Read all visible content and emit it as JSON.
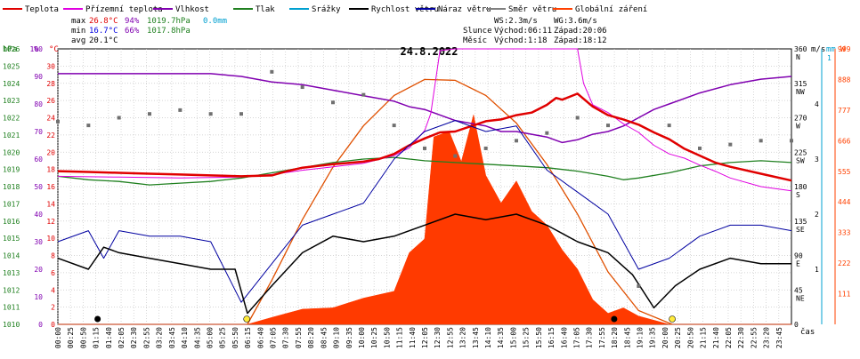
{
  "chart_data": {
    "type": "line",
    "title": "24.8.2022",
    "legend": [
      {
        "name": "Teplota",
        "color": "#e00000"
      },
      {
        "name": "Přízemní teplota",
        "color": "#e000e0"
      },
      {
        "name": "Vlhkost",
        "color": "#8000b0"
      },
      {
        "name": "Tlak",
        "color": "#208020"
      },
      {
        "name": "Srážky",
        "color": "#00a0d0"
      },
      {
        "name": "Rychlost větru",
        "color": "#000000"
      },
      {
        "name": "Náraz větru",
        "color": "#0000a0"
      },
      {
        "name": "Směr větru",
        "color": "#808080"
      },
      {
        "name": "Globální záření",
        "color": "#ff4000"
      }
    ],
    "stats": {
      "max": {
        "label": "max",
        "temp": "26.8°C",
        "hum": "94%",
        "press": "1019.7hPa",
        "rain": "0.0mm"
      },
      "min": {
        "label": "min",
        "temp": "16.7°C",
        "hum": "66%",
        "press": "1017.8hPa"
      },
      "avg": {
        "label": "avg",
        "temp": "20.1°C"
      }
    },
    "info": {
      "ws": "WS:2.3m/s",
      "wg": "WG:3.6m/s",
      "sun_label": "Slunce",
      "sun_rise": "Východ:06:11",
      "sun_set": "Západ:20:06",
      "moon_label": "Měsíc",
      "moon_rise": "Východ:1:18",
      "moon_set": "Západ:18:12"
    },
    "axes": {
      "hpa_unit": "hPa",
      "pct_unit": "%",
      "c_unit": "°C",
      "ms_unit": "m/s",
      "mm_unit": "mm",
      "w_unit": "W",
      "x_unit": "čas",
      "hpa_ticks": [
        "1026",
        "1025",
        "1024",
        "1023",
        "1022",
        "1021",
        "1020",
        "1019",
        "1018",
        "1017",
        "1016",
        "1015",
        "1014",
        "1013",
        "1012",
        "1011",
        "1010"
      ],
      "pct_ticks": [
        "100",
        "90",
        "80",
        "70",
        "60",
        "50",
        "40",
        "30",
        "20",
        "10",
        "0"
      ],
      "c_ticks": [
        "30",
        "28",
        "26",
        "24",
        "22",
        "20",
        "18",
        "16",
        "14",
        "12",
        "10",
        "8",
        "6",
        "4",
        "2",
        "0"
      ],
      "dir_ticks": [
        [
          "360",
          "N"
        ],
        [
          "315",
          "NW"
        ],
        [
          "270",
          "W"
        ],
        [
          "225",
          "SW"
        ],
        [
          "180",
          "S"
        ],
        [
          "135",
          "SE"
        ],
        [
          "90",
          "E"
        ],
        [
          "45",
          "NE"
        ],
        [
          "0",
          ""
        ]
      ],
      "ms_ticks": [
        "4",
        "3",
        "2",
        "1"
      ],
      "mm_ticks": [
        "1"
      ],
      "w_ticks": [
        "999",
        "888",
        "777",
        "666",
        "555",
        "444",
        "333",
        "222",
        "111"
      ],
      "time_ticks": [
        "00:00",
        "00:25",
        "00:50",
        "01:15",
        "01:40",
        "02:05",
        "02:30",
        "02:55",
        "03:20",
        "03:45",
        "04:10",
        "04:35",
        "05:00",
        "05:25",
        "05:50",
        "06:15",
        "06:40",
        "07:05",
        "07:30",
        "07:55",
        "08:20",
        "08:45",
        "09:10",
        "09:35",
        "10:00",
        "10:25",
        "10:50",
        "11:15",
        "11:40",
        "12:05",
        "12:30",
        "12:55",
        "13:20",
        "13:45",
        "14:10",
        "14:35",
        "15:00",
        "15:25",
        "15:50",
        "16:15",
        "16:40",
        "17:05",
        "17:30",
        "17:55",
        "18:20",
        "18:45",
        "19:10",
        "19:35",
        "20:00",
        "20:25",
        "20:50",
        "21:15",
        "21:40",
        "22:05",
        "22:30",
        "22:55",
        "23:20",
        "23:45"
      ]
    },
    "ranges": {
      "temp_c": [
        0,
        32
      ],
      "humidity_pct": [
        0,
        100
      ],
      "pressure_hpa": [
        1010,
        1026
      ],
      "wind_ms": [
        0,
        5
      ],
      "radiation_w": [
        0,
        999
      ],
      "direction_deg": [
        0,
        360
      ],
      "time_h": [
        0,
        24
      ]
    },
    "series": {
      "temperature": [
        [
          0,
          17.8
        ],
        [
          1,
          17.7
        ],
        [
          2,
          17.6
        ],
        [
          3,
          17.5
        ],
        [
          4,
          17.4
        ],
        [
          5,
          17.3
        ],
        [
          6,
          17.2
        ],
        [
          7,
          17.3
        ],
        [
          7.5,
          17.8
        ],
        [
          8,
          18.2
        ],
        [
          9,
          18.6
        ],
        [
          10,
          18.9
        ],
        [
          10.5,
          19.2
        ],
        [
          11,
          19.8
        ],
        [
          11.5,
          20.8
        ],
        [
          12,
          21.6
        ],
        [
          12.5,
          22.3
        ],
        [
          13,
          22.4
        ],
        [
          13.5,
          23.0
        ],
        [
          14,
          23.6
        ],
        [
          14.5,
          23.8
        ],
        [
          15,
          24.3
        ],
        [
          15.5,
          24.6
        ],
        [
          16,
          25.5
        ],
        [
          16.3,
          26.3
        ],
        [
          16.5,
          26.1
        ],
        [
          17,
          26.8
        ],
        [
          17.5,
          25.3
        ],
        [
          18,
          24.3
        ],
        [
          18.5,
          23.8
        ],
        [
          19,
          23.2
        ],
        [
          19.5,
          22.3
        ],
        [
          20,
          21.5
        ],
        [
          20.5,
          20.4
        ],
        [
          21,
          19.6
        ],
        [
          21.5,
          18.8
        ],
        [
          22,
          18.3
        ],
        [
          23,
          17.5
        ],
        [
          24,
          16.7
        ]
      ],
      "ground_temperature": [
        [
          0,
          17.2
        ],
        [
          2,
          17.1
        ],
        [
          4,
          17.0
        ],
        [
          6,
          17.1
        ],
        [
          7,
          17.4
        ],
        [
          8,
          17.9
        ],
        [
          9,
          18.3
        ],
        [
          10,
          18.7
        ],
        [
          11,
          19.6
        ],
        [
          11.5,
          20.5
        ],
        [
          12,
          22.5
        ],
        [
          12.2,
          24.5
        ],
        [
          12.5,
          31.8
        ],
        [
          13,
          32.0
        ],
        [
          14,
          32.0
        ],
        [
          15,
          32.0
        ],
        [
          16,
          32.0
        ],
        [
          17,
          32.0
        ],
        [
          17.2,
          28.0
        ],
        [
          17.5,
          25.5
        ],
        [
          18,
          24.6
        ],
        [
          18.5,
          23.3
        ],
        [
          19,
          22.3
        ],
        [
          19.5,
          20.8
        ],
        [
          20,
          19.8
        ],
        [
          20.5,
          19.3
        ],
        [
          21,
          18.5
        ],
        [
          21.5,
          17.8
        ],
        [
          22,
          17.0
        ],
        [
          23,
          16.0
        ],
        [
          24,
          15.5
        ]
      ],
      "humidity": [
        [
          0,
          91
        ],
        [
          4,
          91
        ],
        [
          5,
          91
        ],
        [
          6,
          90
        ],
        [
          7,
          88
        ],
        [
          8,
          87
        ],
        [
          9,
          85
        ],
        [
          10,
          83
        ],
        [
          11,
          81
        ],
        [
          11.5,
          79
        ],
        [
          12,
          78
        ],
        [
          12.5,
          76
        ],
        [
          13,
          74
        ],
        [
          13.5,
          73
        ],
        [
          14,
          72
        ],
        [
          14.5,
          70
        ],
        [
          15,
          70
        ],
        [
          15.5,
          69
        ],
        [
          16,
          68
        ],
        [
          16.5,
          66
        ],
        [
          17,
          67
        ],
        [
          17.5,
          69
        ],
        [
          18,
          70
        ],
        [
          18.5,
          72
        ],
        [
          19,
          75
        ],
        [
          19.5,
          78
        ],
        [
          20,
          80
        ],
        [
          21,
          84
        ],
        [
          22,
          87
        ],
        [
          23,
          89
        ],
        [
          24,
          90
        ]
      ],
      "pressure": [
        [
          0,
          1018.6
        ],
        [
          1,
          1018.4
        ],
        [
          2,
          1018.3
        ],
        [
          3,
          1018.1
        ],
        [
          4,
          1018.2
        ],
        [
          5,
          1018.3
        ],
        [
          6,
          1018.5
        ],
        [
          7,
          1018.8
        ],
        [
          8,
          1019.1
        ],
        [
          9,
          1019.4
        ],
        [
          10,
          1019.6
        ],
        [
          11,
          1019.7
        ],
        [
          12,
          1019.5
        ],
        [
          13,
          1019.4
        ],
        [
          14,
          1019.3
        ],
        [
          15,
          1019.2
        ],
        [
          16,
          1019.1
        ],
        [
          17,
          1018.9
        ],
        [
          18,
          1018.6
        ],
        [
          18.5,
          1018.4
        ],
        [
          19,
          1018.5
        ],
        [
          20,
          1018.8
        ],
        [
          21,
          1019.2
        ],
        [
          22,
          1019.4
        ],
        [
          23,
          1019.5
        ],
        [
          24,
          1019.4
        ]
      ],
      "radiation": [
        [
          0,
          0
        ],
        [
          6.2,
          0
        ],
        [
          7,
          25
        ],
        [
          8,
          55
        ],
        [
          9,
          60
        ],
        [
          10,
          95
        ],
        [
          11,
          120
        ],
        [
          11.5,
          260
        ],
        [
          12,
          310
        ],
        [
          12.3,
          680
        ],
        [
          12.8,
          700
        ],
        [
          13.2,
          590
        ],
        [
          13.6,
          760
        ],
        [
          14,
          540
        ],
        [
          14.5,
          440
        ],
        [
          15,
          520
        ],
        [
          15.5,
          410
        ],
        [
          16,
          360
        ],
        [
          16.5,
          270
        ],
        [
          17,
          200
        ],
        [
          17.5,
          90
        ],
        [
          18,
          40
        ],
        [
          18.5,
          60
        ],
        [
          19,
          30
        ],
        [
          20,
          0
        ],
        [
          24,
          0
        ]
      ],
      "radiation_theoretical": [
        [
          6.2,
          0
        ],
        [
          7,
          160
        ],
        [
          8,
          380
        ],
        [
          9,
          570
        ],
        [
          10,
          720
        ],
        [
          11,
          830
        ],
        [
          12,
          888
        ],
        [
          13,
          885
        ],
        [
          14,
          830
        ],
        [
          15,
          730
        ],
        [
          16,
          580
        ],
        [
          17,
          400
        ],
        [
          18,
          190
        ],
        [
          19,
          50
        ],
        [
          20.1,
          0
        ]
      ],
      "wind_speed": [
        [
          0,
          1.2
        ],
        [
          1,
          1.0
        ],
        [
          1.5,
          1.4
        ],
        [
          2,
          1.3
        ],
        [
          3,
          1.2
        ],
        [
          4,
          1.1
        ],
        [
          5,
          1.0
        ],
        [
          5.8,
          1.0
        ],
        [
          6.2,
          0.2
        ],
        [
          7,
          0.7
        ],
        [
          8,
          1.3
        ],
        [
          9,
          1.6
        ],
        [
          10,
          1.5
        ],
        [
          11,
          1.6
        ],
        [
          12,
          1.8
        ],
        [
          13,
          2.0
        ],
        [
          14,
          1.9
        ],
        [
          15,
          2.0
        ],
        [
          16,
          1.8
        ],
        [
          17,
          1.5
        ],
        [
          18,
          1.3
        ],
        [
          18.8,
          0.9
        ],
        [
          19.5,
          0.3
        ],
        [
          20.2,
          0.7
        ],
        [
          21,
          1.0
        ],
        [
          22,
          1.2
        ],
        [
          23,
          1.1
        ],
        [
          24,
          1.1
        ]
      ],
      "wind_gust": [
        [
          0,
          1.5
        ],
        [
          1,
          1.7
        ],
        [
          1.5,
          1.2
        ],
        [
          2,
          1.7
        ],
        [
          3,
          1.6
        ],
        [
          4,
          1.6
        ],
        [
          5,
          1.5
        ],
        [
          6,
          0.4
        ],
        [
          7,
          1.1
        ],
        [
          8,
          1.8
        ],
        [
          9,
          2.0
        ],
        [
          10,
          2.2
        ],
        [
          11,
          3.0
        ],
        [
          12,
          3.5
        ],
        [
          13,
          3.7
        ],
        [
          14,
          3.5
        ],
        [
          15,
          3.6
        ],
        [
          16,
          2.8
        ],
        [
          17,
          2.4
        ],
        [
          18,
          2.0
        ],
        [
          19,
          1.0
        ],
        [
          20,
          1.2
        ],
        [
          21,
          1.6
        ],
        [
          22,
          1.8
        ],
        [
          23,
          1.8
        ],
        [
          24,
          1.7
        ]
      ],
      "wind_direction": [
        [
          0,
          265
        ],
        [
          1,
          260
        ],
        [
          2,
          270
        ],
        [
          3,
          275
        ],
        [
          4,
          280
        ],
        [
          5,
          275
        ],
        [
          6,
          275
        ],
        [
          7,
          330
        ],
        [
          8,
          310
        ],
        [
          9,
          290
        ],
        [
          10,
          300
        ],
        [
          11,
          260
        ],
        [
          12,
          230
        ],
        [
          13,
          220
        ],
        [
          14,
          230
        ],
        [
          15,
          240
        ],
        [
          16,
          250
        ],
        [
          17,
          270
        ],
        [
          18,
          260
        ],
        [
          19,
          50
        ],
        [
          20,
          260
        ],
        [
          21,
          230
        ],
        [
          22,
          235
        ],
        [
          23,
          240
        ],
        [
          24,
          240
        ]
      ]
    }
  }
}
